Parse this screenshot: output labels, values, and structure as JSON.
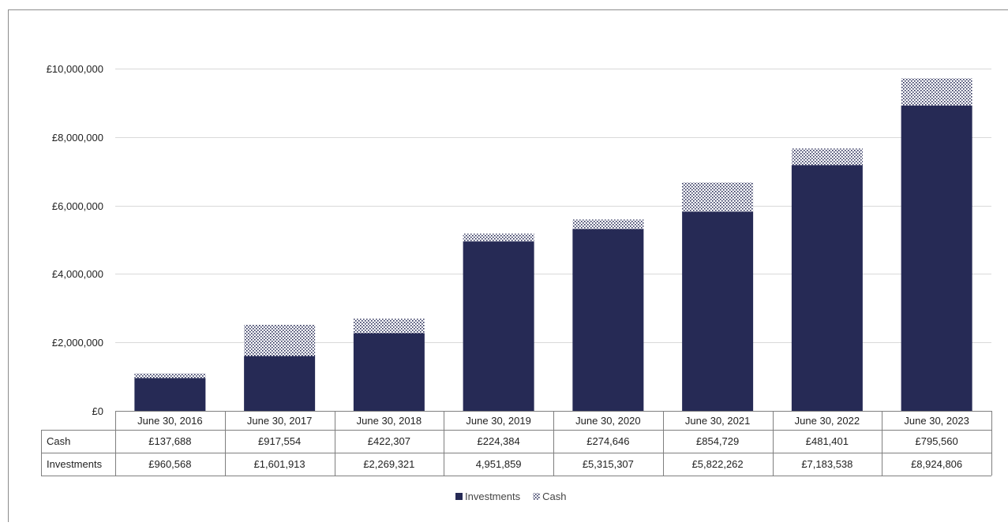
{
  "colors": {
    "investments": "#262a55",
    "cash_dot": "#262a55",
    "grid": "#d9d9d9",
    "border": "#8c8c8c",
    "table_border": "#7f7f7f"
  },
  "chart_data": {
    "type": "bar",
    "stacked": true,
    "categories": [
      "June 30, 2016",
      "June 30, 2017",
      "June 30, 2018",
      "June 30, 2019",
      "June 30, 2020",
      "June 30, 2021",
      "June 30, 2022",
      "June 30, 2023"
    ],
    "series": [
      {
        "name": "Investments",
        "values": [
          960568,
          1601913,
          2269321,
          4951859,
          5315307,
          5822262,
          7183538,
          8924806
        ]
      },
      {
        "name": "Cash",
        "values": [
          137688,
          917554,
          422307,
          224384,
          274646,
          854729,
          481401,
          795560
        ]
      }
    ],
    "ylim": [
      0,
      10000000
    ],
    "yticks": [
      0,
      2000000,
      4000000,
      6000000,
      8000000,
      10000000
    ],
    "ytick_labels": [
      "£0",
      "£2,000,000",
      "£4,000,000",
      "£6,000,000",
      "£8,000,000",
      "£10,000,000"
    ],
    "grid": true,
    "legend_position": "bottom",
    "data_table": {
      "rows": [
        {
          "label": "Cash",
          "cells": [
            "£137,688",
            "£917,554",
            "£422,307",
            "£224,384",
            "£274,646",
            "£854,729",
            "£481,401",
            "£795,560"
          ]
        },
        {
          "label": "Investments",
          "cells": [
            "£960,568",
            "£1,601,913",
            "£2,269,321",
            "4,951,859",
            "£5,315,307",
            "£5,822,262",
            "£7,183,538",
            "£8,924,806"
          ]
        }
      ]
    },
    "legend": [
      {
        "label": "Investments",
        "icon": "solid-square-icon"
      },
      {
        "label": "Cash",
        "icon": "dotted-square-icon"
      }
    ]
  }
}
